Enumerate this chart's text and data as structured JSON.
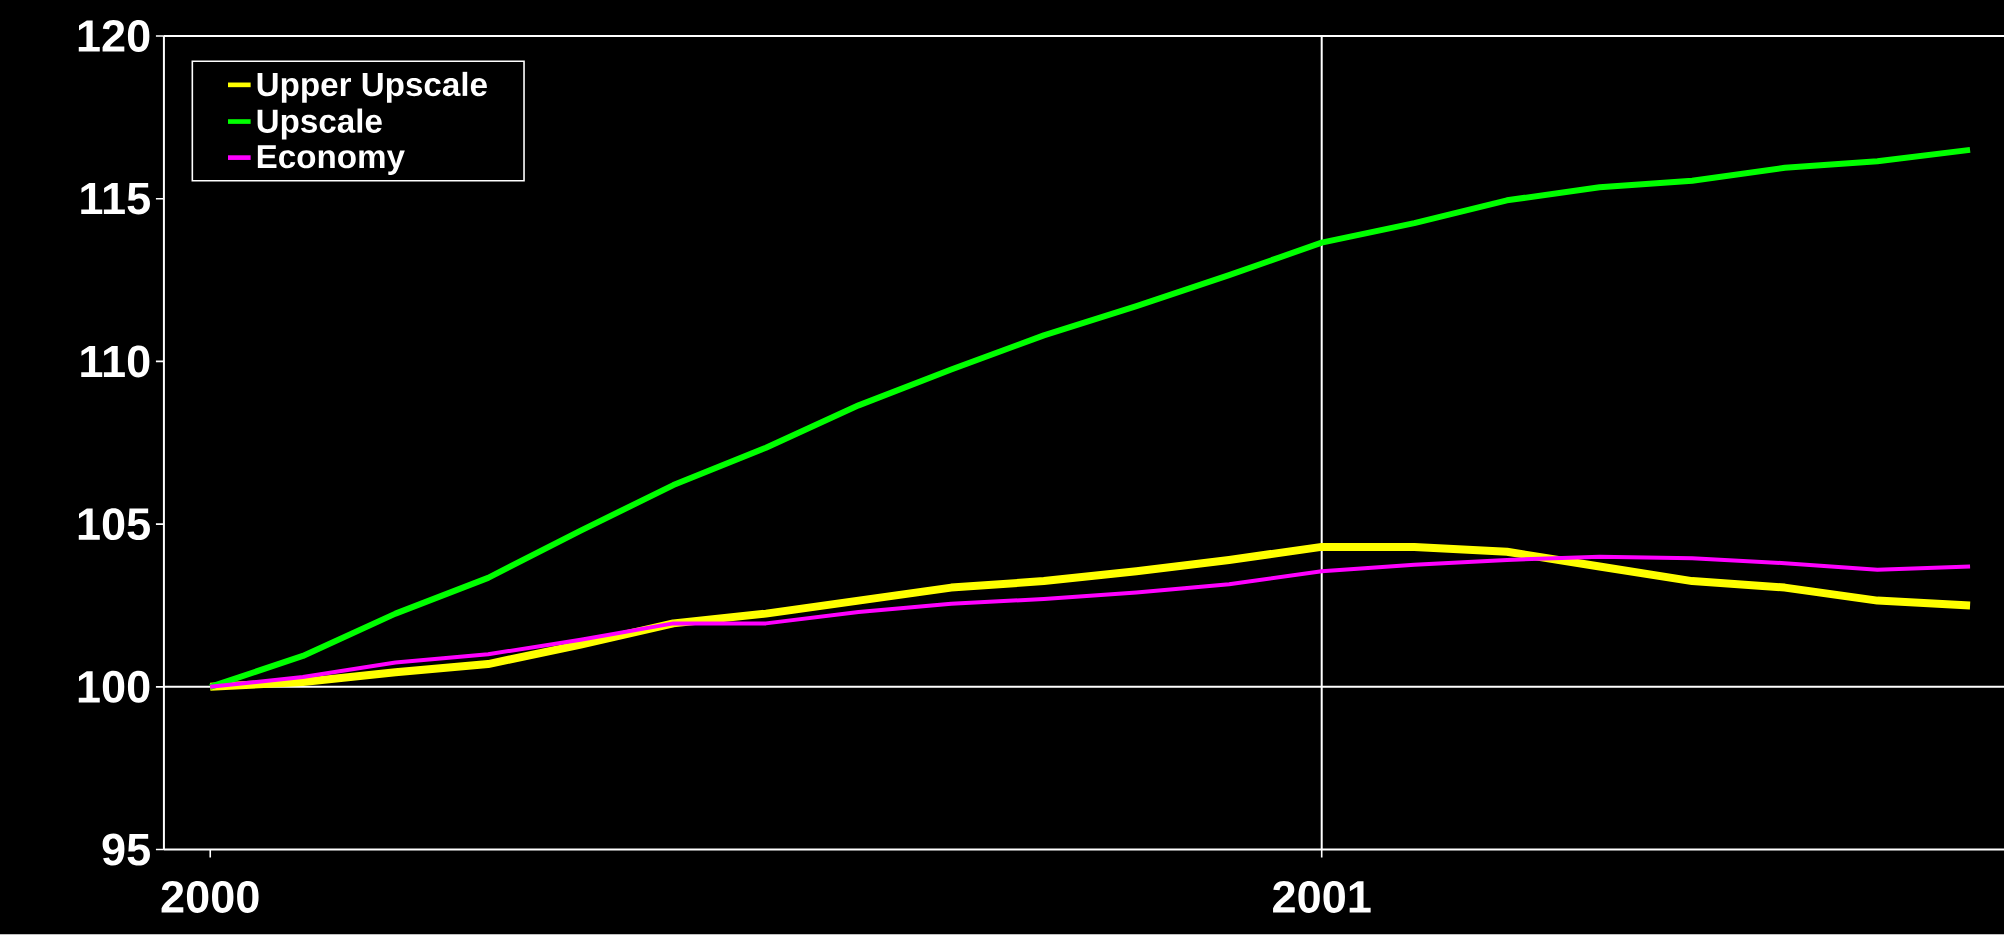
{
  "chart_data": {
    "type": "line",
    "x": [
      "2000-01",
      "2000-02",
      "2000-03",
      "2000-04",
      "2000-05",
      "2000-06",
      "2000-07",
      "2000-08",
      "2000-09",
      "2000-10",
      "2000-11",
      "2000-12",
      "2001-01",
      "2001-02",
      "2001-03",
      "2001-04",
      "2001-05",
      "2001-06",
      "2001-07",
      "2001-08"
    ],
    "series": [
      {
        "name": "Upper Upscale",
        "color": "#ffff00",
        "values": [
          100,
          100.15,
          100.45,
          100.7,
          101.3,
          101.95,
          102.25,
          102.65,
          103.05,
          103.25,
          103.55,
          103.9,
          104.3,
          104.3,
          104.15,
          103.7,
          103.25,
          103.05,
          102.65,
          102.5
        ]
      },
      {
        "name": "Upscale",
        "color": "#00ff00",
        "values": [
          100,
          100.95,
          102.25,
          103.35,
          104.8,
          106.2,
          107.35,
          108.65,
          109.75,
          110.8,
          111.7,
          112.65,
          113.65,
          114.25,
          114.95,
          115.35,
          115.55,
          115.95,
          116.15,
          116.5
        ]
      },
      {
        "name": "Economy",
        "color": "#ff00ff",
        "values": [
          100,
          100.3,
          100.75,
          101.0,
          101.45,
          101.95,
          101.95,
          102.3,
          102.55,
          102.7,
          102.9,
          103.15,
          103.55,
          103.75,
          103.9,
          104.0,
          103.95,
          103.8,
          103.6,
          103.7
        ]
      }
    ],
    "xlim": [
      "1999-12-16",
      "2001-08-12"
    ],
    "xticks": [
      {
        "value": "2000-01",
        "label": "2000"
      },
      {
        "value": "2001-01",
        "label": "2001"
      }
    ],
    "ylim": [
      95,
      120
    ],
    "yticks": [
      95,
      100,
      105,
      110,
      115,
      120
    ],
    "ref_lines": [
      {
        "axis": "y",
        "value": 100,
        "color": "#ffffff"
      },
      {
        "axis": "x",
        "value": "2001-01",
        "color": "#ffffff"
      }
    ],
    "legend": "top left",
    "marker": "none",
    "line_style": "solid",
    "grid": false
  }
}
